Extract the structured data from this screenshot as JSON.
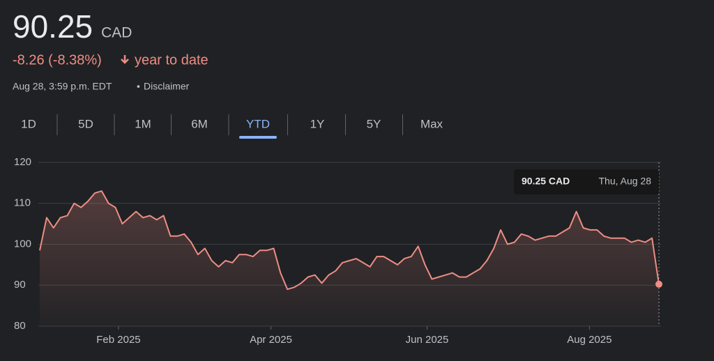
{
  "header": {
    "price": "90.25",
    "currency": "CAD",
    "change": "-8.26 (-8.38%)",
    "period": "year to date",
    "timestamp": "Aug 28, 3:59 p.m. EDT",
    "separator": "•",
    "disclaimer": "Disclaimer"
  },
  "tabs": {
    "items": [
      "1D",
      "5D",
      "1M",
      "6M",
      "YTD",
      "1Y",
      "5Y",
      "Max"
    ],
    "selected": 4
  },
  "tooltip": {
    "value": "90.25 CAD",
    "date": "Thu, Aug 28"
  },
  "chart_data": {
    "type": "line",
    "color": "#ee8e84",
    "grid": true,
    "values": [
      98.5,
      106.5,
      104,
      106.5,
      107,
      110,
      109,
      110.5,
      112.5,
      113,
      110,
      109,
      105,
      106.5,
      108,
      106.5,
      107,
      106,
      107,
      102,
      102,
      102.5,
      100.5,
      97.5,
      99,
      96,
      94.5,
      96,
      95.5,
      97.5,
      97.5,
      97,
      98.5,
      98.5,
      99,
      93,
      89,
      89.5,
      90.5,
      92,
      92.5,
      90.5,
      92.5,
      93.5,
      95.5,
      96,
      96.5,
      95.5,
      94.5,
      97,
      97,
      96,
      95,
      96.5,
      97,
      99.5,
      95,
      91.5,
      92,
      92.5,
      93,
      92,
      92,
      93,
      94,
      96,
      99,
      103.5,
      100,
      100.5,
      102.5,
      102,
      101,
      101.5,
      102,
      102,
      103,
      104,
      108,
      104,
      103.5,
      103.5,
      102,
      101.5,
      101.5,
      101.5,
      100.5,
      101,
      100.5,
      101.5,
      90.25
    ],
    "xlim": [
      0,
      90
    ],
    "xticks": [
      {
        "value": 11.45,
        "label": "Feb 2025"
      },
      {
        "value": 33.6,
        "label": "Apr 2025"
      },
      {
        "value": 56.3,
        "label": "Jun 2025"
      },
      {
        "value": 79.9,
        "label": "Aug 2025"
      }
    ],
    "ylim": [
      80,
      120
    ],
    "yticks": [
      80,
      90,
      100,
      110,
      120
    ]
  }
}
